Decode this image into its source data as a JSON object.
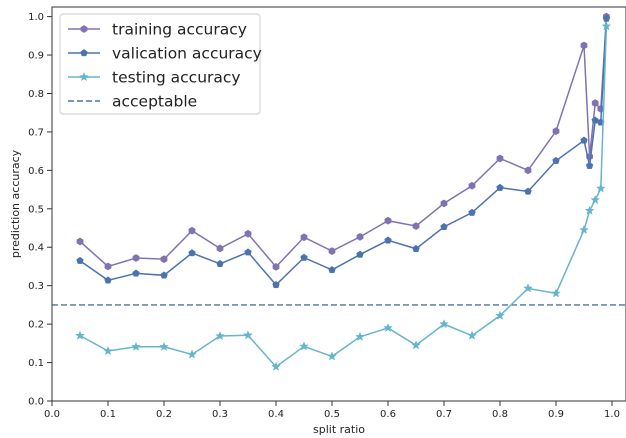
{
  "chart_data": {
    "type": "line",
    "xlabel": "split ratio",
    "ylabel": "prediction accuracy",
    "xlim": [
      0.0,
      1.025
    ],
    "ylim": [
      0.0,
      1.025
    ],
    "xticks": [
      "0.0",
      "0.1",
      "0.2",
      "0.3",
      "0.4",
      "0.5",
      "0.6",
      "0.7",
      "0.8",
      "0.9",
      "1.0"
    ],
    "yticks": [
      "0.0",
      "0.1",
      "0.2",
      "0.3",
      "0.4",
      "0.5",
      "0.6",
      "0.7",
      "0.8",
      "0.9",
      "1.0"
    ],
    "grid": false,
    "legend_position": "top-left",
    "x": [
      0.05,
      0.1,
      0.15,
      0.2,
      0.25,
      0.3,
      0.35,
      0.4,
      0.45,
      0.5,
      0.55,
      0.6,
      0.65,
      0.7,
      0.75,
      0.8,
      0.85,
      0.9,
      0.95,
      0.96,
      0.97,
      0.98,
      0.99
    ],
    "series": [
      {
        "name": "training accuracy",
        "color": "#8172b2",
        "marker": "hexagon",
        "values": [
          0.415,
          0.35,
          0.372,
          0.369,
          0.443,
          0.397,
          0.435,
          0.349,
          0.426,
          0.39,
          0.427,
          0.469,
          0.455,
          0.514,
          0.56,
          0.631,
          0.6,
          0.702,
          0.925,
          0.636,
          0.775,
          0.76,
          1.0
        ]
      },
      {
        "name": "valication accuracy",
        "color": "#4c72b0",
        "marker": "pentagon",
        "values": [
          0.365,
          0.314,
          0.332,
          0.327,
          0.385,
          0.357,
          0.387,
          0.302,
          0.373,
          0.341,
          0.381,
          0.418,
          0.396,
          0.453,
          0.49,
          0.555,
          0.545,
          0.625,
          0.678,
          0.612,
          0.73,
          0.725,
          0.995
        ]
      },
      {
        "name": "testing accuracy",
        "color": "#64b5cd",
        "marker": "star",
        "values": [
          0.17,
          0.13,
          0.141,
          0.141,
          0.121,
          0.169,
          0.171,
          0.089,
          0.142,
          0.116,
          0.167,
          0.19,
          0.145,
          0.2,
          0.17,
          0.222,
          0.293,
          0.28,
          0.445,
          0.495,
          0.523,
          0.553,
          0.975
        ]
      }
    ],
    "reference_lines": [
      {
        "name": "acceptable",
        "y": 0.25,
        "color": "#4c72b0",
        "style": "dashed"
      }
    ]
  }
}
